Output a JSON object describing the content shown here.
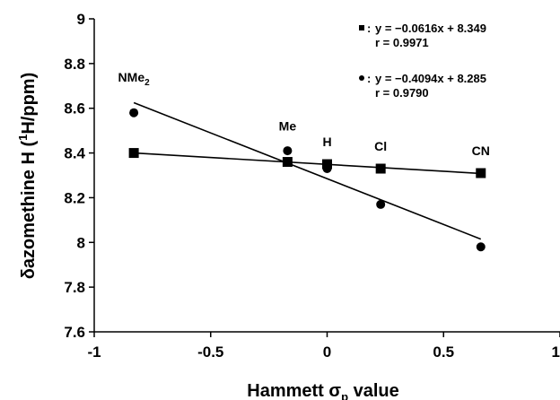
{
  "chart_data": {
    "type": "scatter",
    "xlabel": {
      "main": "Hammett ",
      "sym": "σ",
      "sub": "p",
      "tail": " value"
    },
    "ylabel": {
      "delta": "δ",
      "main": "azomethine H  (",
      "sup": "1",
      "tail": "H/ppm)"
    },
    "xlim": [
      -1,
      1
    ],
    "ylim": [
      7.6,
      9
    ],
    "x_ticks": [
      -1,
      -0.5,
      0,
      0.5,
      1
    ],
    "x_tick_labels": [
      "-1",
      "-0.5",
      "0",
      "0.5",
      "1"
    ],
    "y_ticks": [
      7.6,
      7.8,
      8,
      8.2,
      8.4,
      8.6,
      8.8,
      9
    ],
    "y_tick_labels": [
      "7.6",
      "7.8",
      "8",
      "8.2",
      "8.4",
      "8.6",
      "8.8",
      "9"
    ],
    "grid": false,
    "legend_placement": "top-right",
    "series": [
      {
        "marker": "square",
        "x": [
          -0.83,
          -0.17,
          0.0,
          0.23,
          0.66
        ],
        "y": [
          8.4,
          8.36,
          8.35,
          8.33,
          8.31
        ],
        "fit": {
          "slope": -0.0616,
          "intercept": 8.349,
          "x_range": [
            -0.83,
            0.66
          ]
        },
        "equation": "y = −0.0616x + 8.349",
        "r": "r = 0.9971"
      },
      {
        "marker": "circle",
        "x": [
          -0.83,
          -0.17,
          0.0,
          0.23,
          0.66
        ],
        "y": [
          8.58,
          8.41,
          8.33,
          8.17,
          7.98
        ],
        "fit": {
          "slope": -0.4094,
          "intercept": 8.285,
          "x_range": [
            -0.83,
            0.66
          ]
        },
        "equation": "y = −0.4094x + 8.285",
        "r": "r = 0.9790"
      }
    ],
    "substituent_labels": [
      {
        "text": "NMe",
        "sub": "2",
        "x": -0.83,
        "y": 8.72
      },
      {
        "text": "Me",
        "sub": "",
        "x": -0.17,
        "y": 8.5
      },
      {
        "text": "H",
        "sub": "",
        "x": 0.0,
        "y": 8.43
      },
      {
        "text": "Cl",
        "sub": "",
        "x": 0.23,
        "y": 8.41
      },
      {
        "text": "CN",
        "sub": "",
        "x": 0.66,
        "y": 8.39
      }
    ],
    "legend_sep": ":"
  }
}
